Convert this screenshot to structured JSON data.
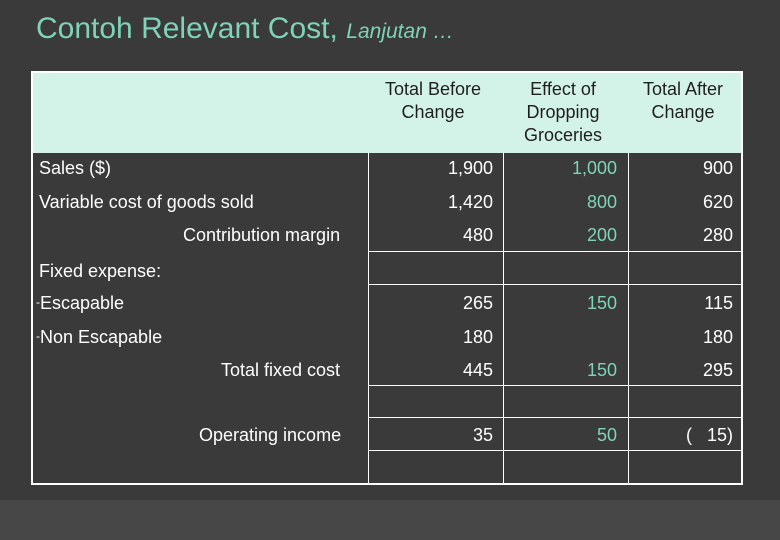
{
  "title": {
    "main": "Contoh Relevant Cost,",
    "sub": "Lanjutan …"
  },
  "table": {
    "headers": [
      [
        "Total Before",
        "Change"
      ],
      [
        "Effect of",
        "Dropping",
        "Groceries"
      ],
      [
        "Total After",
        "Change"
      ]
    ],
    "rows": {
      "sales": {
        "label": "Sales ($)",
        "before": "1,900",
        "effect": "1,000",
        "after": "900"
      },
      "vcogs": {
        "label": "Variable cost of goods sold",
        "before": "1,420",
        "effect": "800",
        "after": "620"
      },
      "cm": {
        "label": "Contribution margin",
        "before": "480",
        "effect": "200",
        "after": "280"
      },
      "fixed_header": {
        "label": "Fixed expense:"
      },
      "escapable": {
        "dash": "-",
        "label": "Escapable",
        "before": "265",
        "effect": "150",
        "after": "115"
      },
      "non_escapable": {
        "dash": "-",
        "label": "Non Escapable",
        "before": "180",
        "effect": "",
        "after": "180"
      },
      "total_fixed": {
        "label": "Total fixed cost",
        "before": "445",
        "effect": "150",
        "after": "295"
      },
      "operating_income": {
        "label": "Operating income",
        "before": "35",
        "effect": "50",
        "after": "(   15)"
      }
    }
  },
  "colors": {
    "background": "#3a3a3a",
    "title": "#7fd3b8",
    "header_fill": "#d3f2e8",
    "effect_column_text": "#7fd3b8",
    "grid": "#ffffff"
  }
}
